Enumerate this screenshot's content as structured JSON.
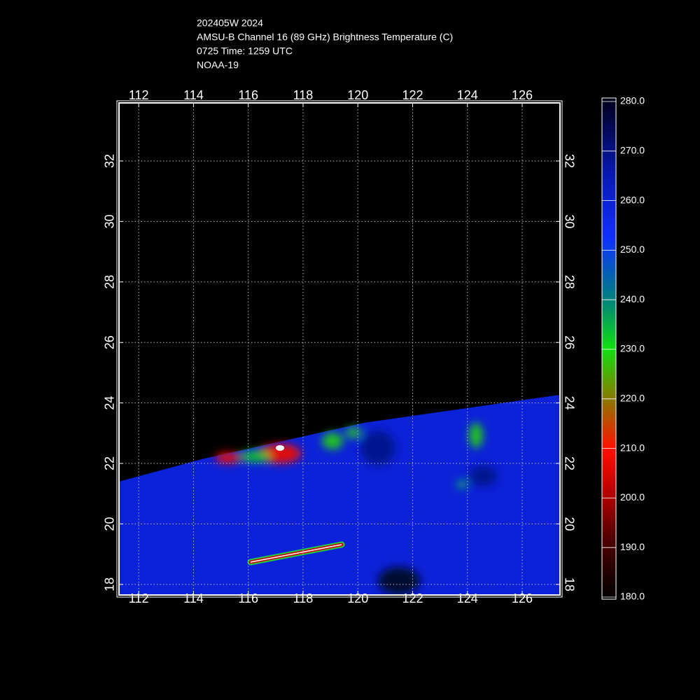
{
  "header": {
    "lines": [
      "202405W 2024",
      "AMSU-B Channel 16 (89 GHz) Brightness Temperature (C)",
      "0725 Time: 1259 UTC",
      "NOAA-19"
    ]
  },
  "map": {
    "xlim": [
      111.28,
      127.38
    ],
    "ylim": [
      17.65,
      33.92
    ],
    "xticks": [
      112,
      114,
      116,
      118,
      120,
      122,
      124,
      126
    ],
    "yticks": [
      18,
      20,
      22,
      24,
      26,
      28,
      30,
      32
    ],
    "grid": true
  },
  "colorbar": {
    "lim": [
      180,
      280
    ],
    "ticks": [
      {
        "value": 180,
        "label": "180.0"
      },
      {
        "value": 190,
        "label": "190.0"
      },
      {
        "value": 200,
        "label": "200.0"
      },
      {
        "value": 210,
        "label": "210.0"
      },
      {
        "value": 220,
        "label": "220.0"
      },
      {
        "value": 230,
        "label": "230.0"
      },
      {
        "value": 240,
        "label": "240.0"
      },
      {
        "value": 250,
        "label": "250.0"
      },
      {
        "value": 260,
        "label": "260.0"
      },
      {
        "value": 270,
        "label": "270.0"
      },
      {
        "value": 280,
        "label": "280.0"
      }
    ]
  }
}
